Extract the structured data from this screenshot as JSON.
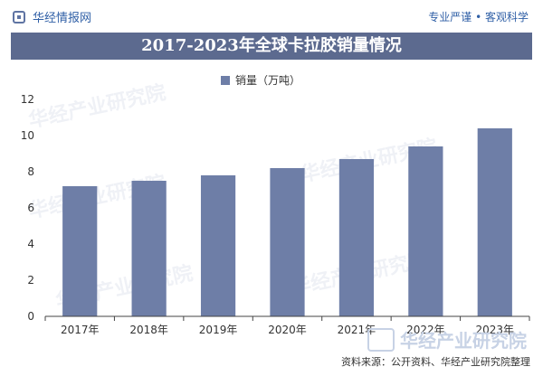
{
  "header": {
    "brand": "华经情报网",
    "tagline": "专业严谨 • 客观科学"
  },
  "chart_title": "2017-2023年全球卡拉胶销量情况",
  "watermark": "华经产业研究院",
  "source": "资料来源：公开资料、华经产业研究院整理",
  "colors": {
    "bar": "#6e7ea7",
    "title_band": "#5c6a8f",
    "brand": "#2f5fa6"
  },
  "chart_data": {
    "type": "bar",
    "title": "2017-2023年全球卡拉胶销量情况",
    "categories": [
      "2017年",
      "2018年",
      "2019年",
      "2020年",
      "2021年",
      "2022年",
      "2023年"
    ],
    "series": [
      {
        "name": "销量（万吨）",
        "values": [
          7.2,
          7.5,
          7.8,
          8.2,
          8.7,
          9.4,
          10.4
        ]
      }
    ],
    "ylim": [
      0,
      12
    ],
    "yticks": [
      0,
      2,
      4,
      6,
      8,
      10,
      12
    ],
    "grid": false,
    "legend": "top-center"
  }
}
